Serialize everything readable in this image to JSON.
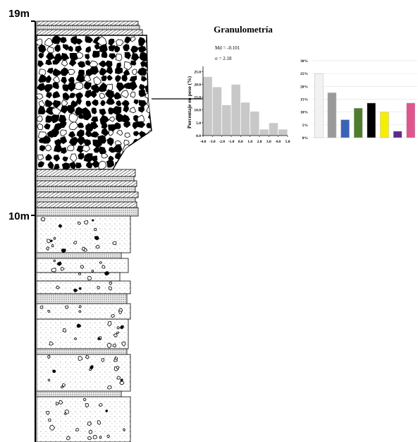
{
  "column": {
    "depth_labels": [
      "19m",
      "10m"
    ]
  },
  "title": "Granulometría",
  "chart_data": [
    {
      "type": "histogram",
      "ylabel": "Porcentaje en peso (%)",
      "annotations": [
        "Md = -0.101",
        "σ = 2.18"
      ],
      "bins": [
        -4,
        -3,
        -2,
        -1,
        0,
        1,
        2,
        3,
        4,
        5
      ],
      "values": [
        23,
        19,
        12,
        20,
        13,
        9.5,
        2.5,
        5,
        2.5
      ],
      "color": "#c8c8c8",
      "xlim": [
        -4,
        5
      ],
      "xticks": [
        {
          "value": -4,
          "label": "-4.0"
        },
        {
          "value": -3,
          "label": "-3.0"
        },
        {
          "value": -2,
          "label": "-2.0"
        },
        {
          "value": -1,
          "label": "-1.0"
        },
        {
          "value": 0,
          "label": "0.0"
        },
        {
          "value": 1,
          "label": "1.0"
        },
        {
          "value": 2,
          "label": "2.0"
        },
        {
          "value": 3,
          "label": "3.0"
        },
        {
          "value": 4,
          "label": "4.0"
        },
        {
          "value": 5,
          "label": "5.0"
        }
      ],
      "ylim": [
        0,
        27
      ],
      "yticks": [
        {
          "value": 0,
          "label": "0.0"
        },
        {
          "value": 5,
          "label": "5.0"
        },
        {
          "value": 10,
          "label": "10.0"
        },
        {
          "value": 15,
          "label": "15.0"
        },
        {
          "value": 20,
          "label": "20.0"
        },
        {
          "value": 25,
          "label": "25.0"
        }
      ]
    },
    {
      "type": "bar",
      "categories": [
        null,
        null,
        null,
        null,
        null,
        null,
        null,
        null
      ],
      "values": [
        25,
        17.5,
        7,
        11.5,
        13.5,
        10,
        2.5,
        13.5
      ],
      "colors": [
        "#f2f2f2",
        "#9a9a9a",
        "#3a63b8",
        "#4f7d2e",
        "#000000",
        "#f5ee00",
        "#5b2a8c",
        "#e0558f"
      ],
      "ylim": [
        0,
        30
      ],
      "yticks": [
        {
          "value": 0,
          "label": "0%"
        },
        {
          "value": 5,
          "label": "5%"
        },
        {
          "value": 10,
          "label": "10%"
        },
        {
          "value": 15,
          "label": "15%"
        },
        {
          "value": 20,
          "label": "20%"
        },
        {
          "value": 25,
          "label": "25%"
        },
        {
          "value": 30,
          "label": "30%"
        }
      ],
      "grid": true
    }
  ]
}
